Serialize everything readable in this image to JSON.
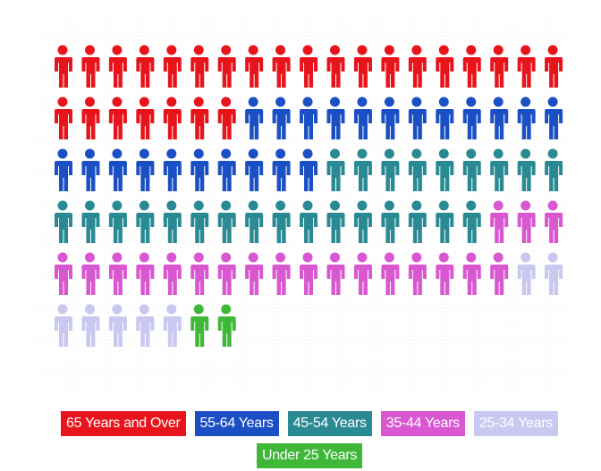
{
  "chart_data": {
    "type": "pictogram",
    "categories": [
      "65 Years and Over",
      "55-64 Years",
      "45-54 Years",
      "35-44 Years",
      "25-34 Years",
      "Under 25 Years"
    ],
    "values": [
      26,
      22,
      25,
      20,
      7,
      2
    ],
    "colors": [
      "#e8141c",
      "#1b4fc4",
      "#2a8a94",
      "#d957d0",
      "#c8c8f0",
      "#3fb83a"
    ],
    "legend": "bottom"
  }
}
